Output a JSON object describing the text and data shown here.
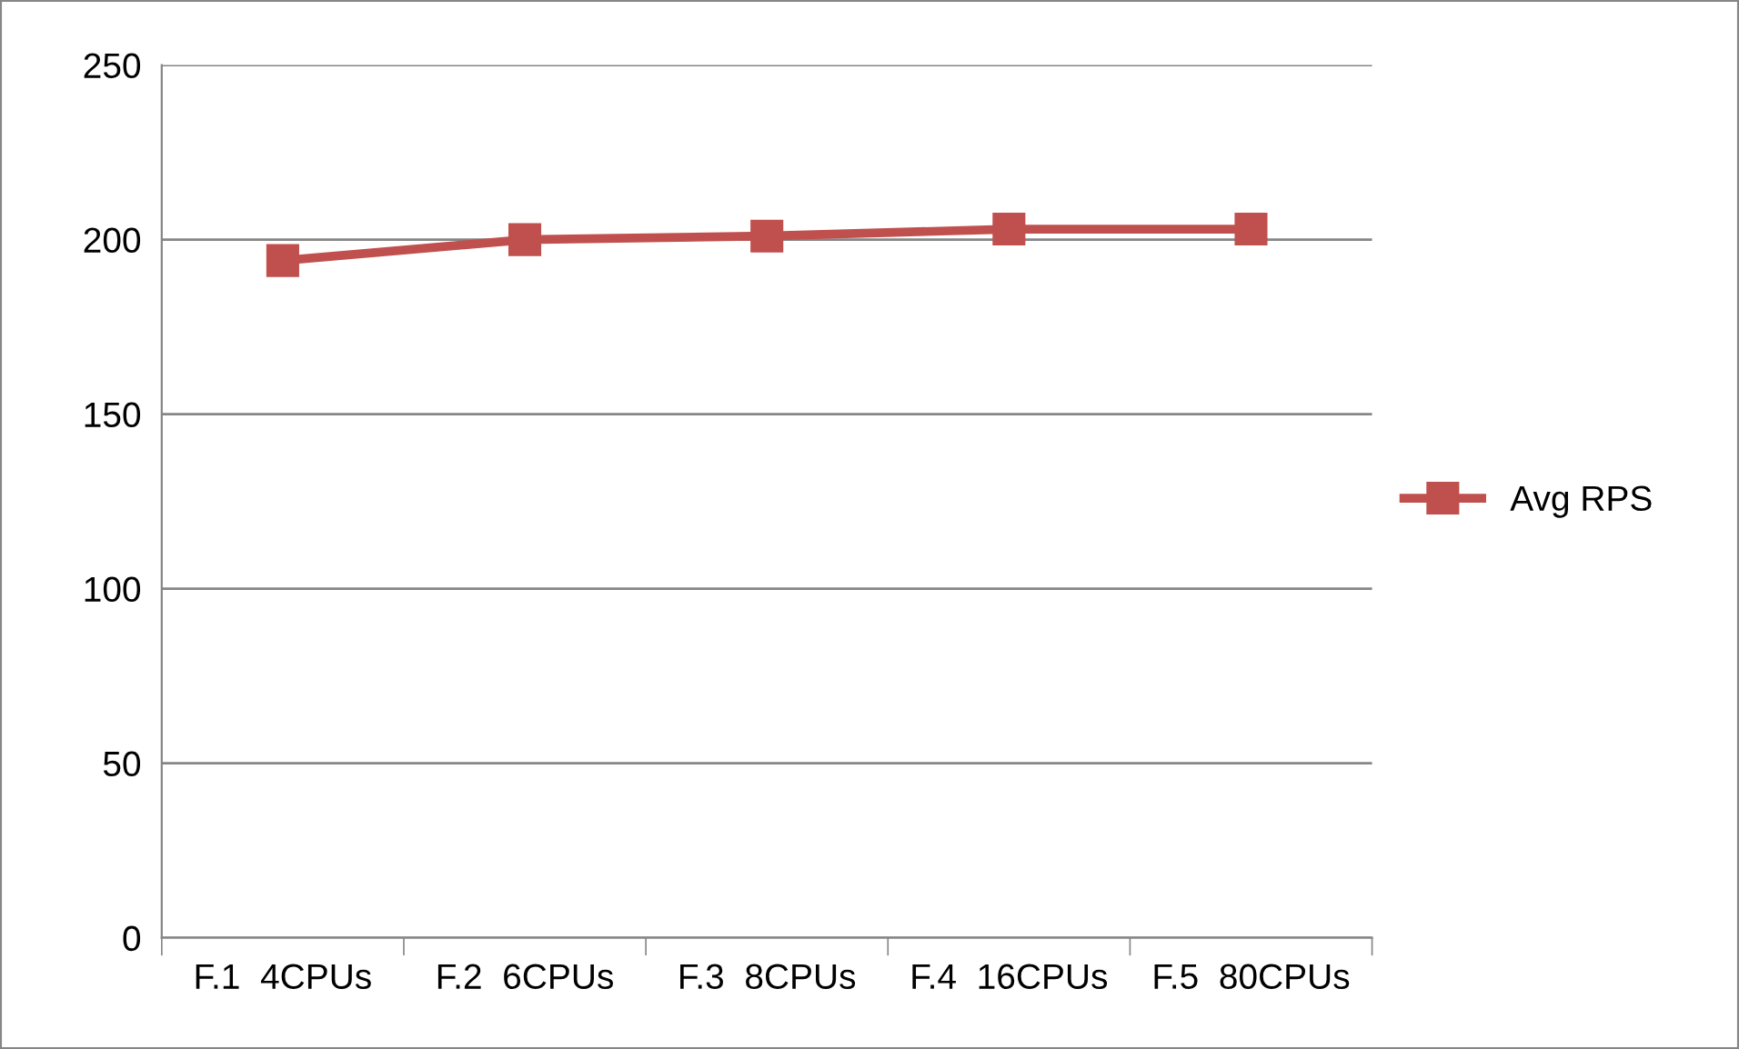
{
  "chart_data": {
    "type": "line",
    "categories": [
      "F.1  4CPUs",
      "F.2  6CPUs",
      "F.3  8CPUs",
      "F.4  16CPUs",
      "F.5  80CPUs"
    ],
    "series": [
      {
        "name": "Avg RPS",
        "color": "#c0504d",
        "values": [
          194,
          200,
          201,
          203,
          203
        ]
      }
    ],
    "ylim": [
      0,
      250
    ],
    "yticks": [
      0,
      50,
      100,
      150,
      200,
      250
    ],
    "grid": "y",
    "legend": "right",
    "marker": "square",
    "line_style": "solid"
  }
}
